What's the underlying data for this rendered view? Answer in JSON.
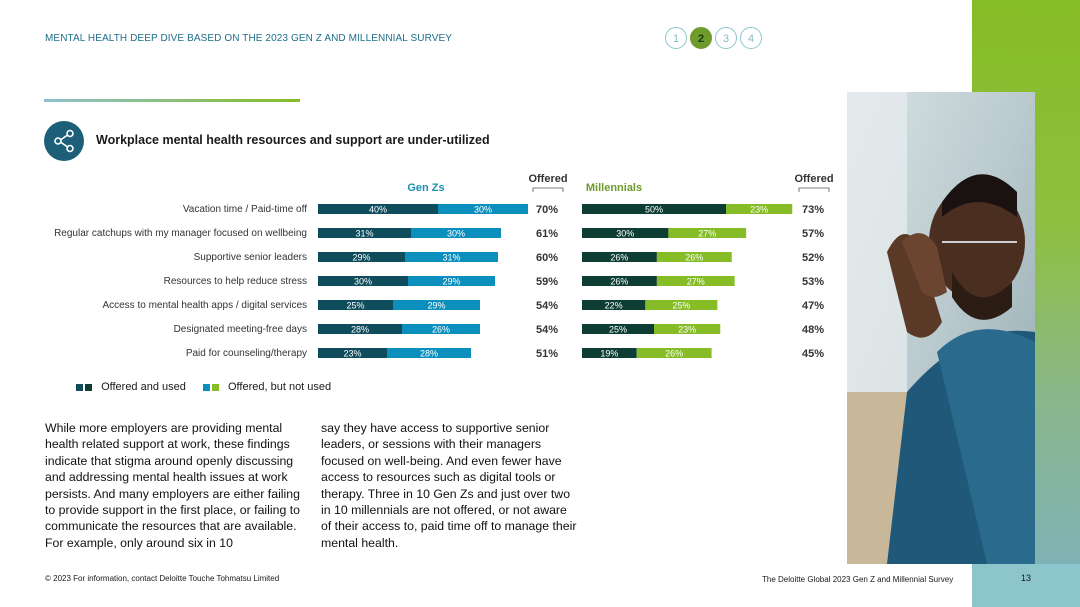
{
  "header": {
    "title": "MENTAL HEALTH DEEP DIVE BASED ON THE 2023 GEN Z AND MILLENNIAL SURVEY",
    "pages": [
      "1",
      "2",
      "3",
      "4"
    ],
    "active_page": "2"
  },
  "section": {
    "icon": "share-icon",
    "title": "Workplace mental health resources and support are under-utilized"
  },
  "colors": {
    "genz_dark": "#0f4c5c",
    "genz_light": "#0d8fbd",
    "mill_dark": "#0e3d34",
    "mill_light": "#86bc25",
    "accent_teal": "#1d6e8a"
  },
  "chart_data": {
    "type": "bar",
    "orientation": "horizontal",
    "stacked": true,
    "categories": [
      "Vacation time / Paid-time off",
      "Regular catchups with my manager focused on wellbeing",
      "Supportive senior leaders",
      "Resources to help reduce stress",
      "Access to mental health apps / digital services",
      "Designated meeting-free days",
      "Paid for counseling/therapy"
    ],
    "groups": [
      {
        "name": "Gen Zs",
        "series": [
          {
            "name": "Offered and used",
            "values": [
              40,
              31,
              29,
              30,
              25,
              28,
              23
            ]
          },
          {
            "name": "Offered, but not used",
            "values": [
              30,
              30,
              31,
              29,
              29,
              26,
              28
            ]
          }
        ],
        "offered_label": "Offered",
        "offered": [
          "70%",
          "61%",
          "60%",
          "59%",
          "54%",
          "54%",
          "51%"
        ]
      },
      {
        "name": "Millennials",
        "series": [
          {
            "name": "Offered and used",
            "values": [
              50,
              30,
              26,
              26,
              22,
              25,
              19
            ]
          },
          {
            "name": "Offered, but not used",
            "values": [
              23,
              27,
              26,
              27,
              25,
              23,
              26
            ]
          }
        ],
        "offered_label": "Offered",
        "offered": [
          "73%",
          "57%",
          "52%",
          "53%",
          "47%",
          "48%",
          "45%"
        ]
      }
    ]
  },
  "legend": {
    "used": "Offered and used",
    "not_used": "Offered, but not used"
  },
  "body": {
    "col1": "While more employers are providing mental health related support at work, these findings indicate that stigma around openly discussing and addressing mental health issues at work persists. And many employers are either failing to provide support in the first place, or failing to communicate the resources that are available. For example, only around six in 10",
    "col2": "say they have access to supportive senior leaders, or sessions with their managers focused on well-being. And even fewer have access to resources such as digital tools or therapy. Three in 10 Gen Zs and just over two in 10 millennials are not offered, or not aware of their access to, paid time off to manage their mental health."
  },
  "footer": {
    "left": "© 2023 For information, contact Deloitte Touche Tohmatsu Limited",
    "right": "The Deloitte Global 2023 Gen Z and Millennial Survey",
    "page": "13"
  }
}
